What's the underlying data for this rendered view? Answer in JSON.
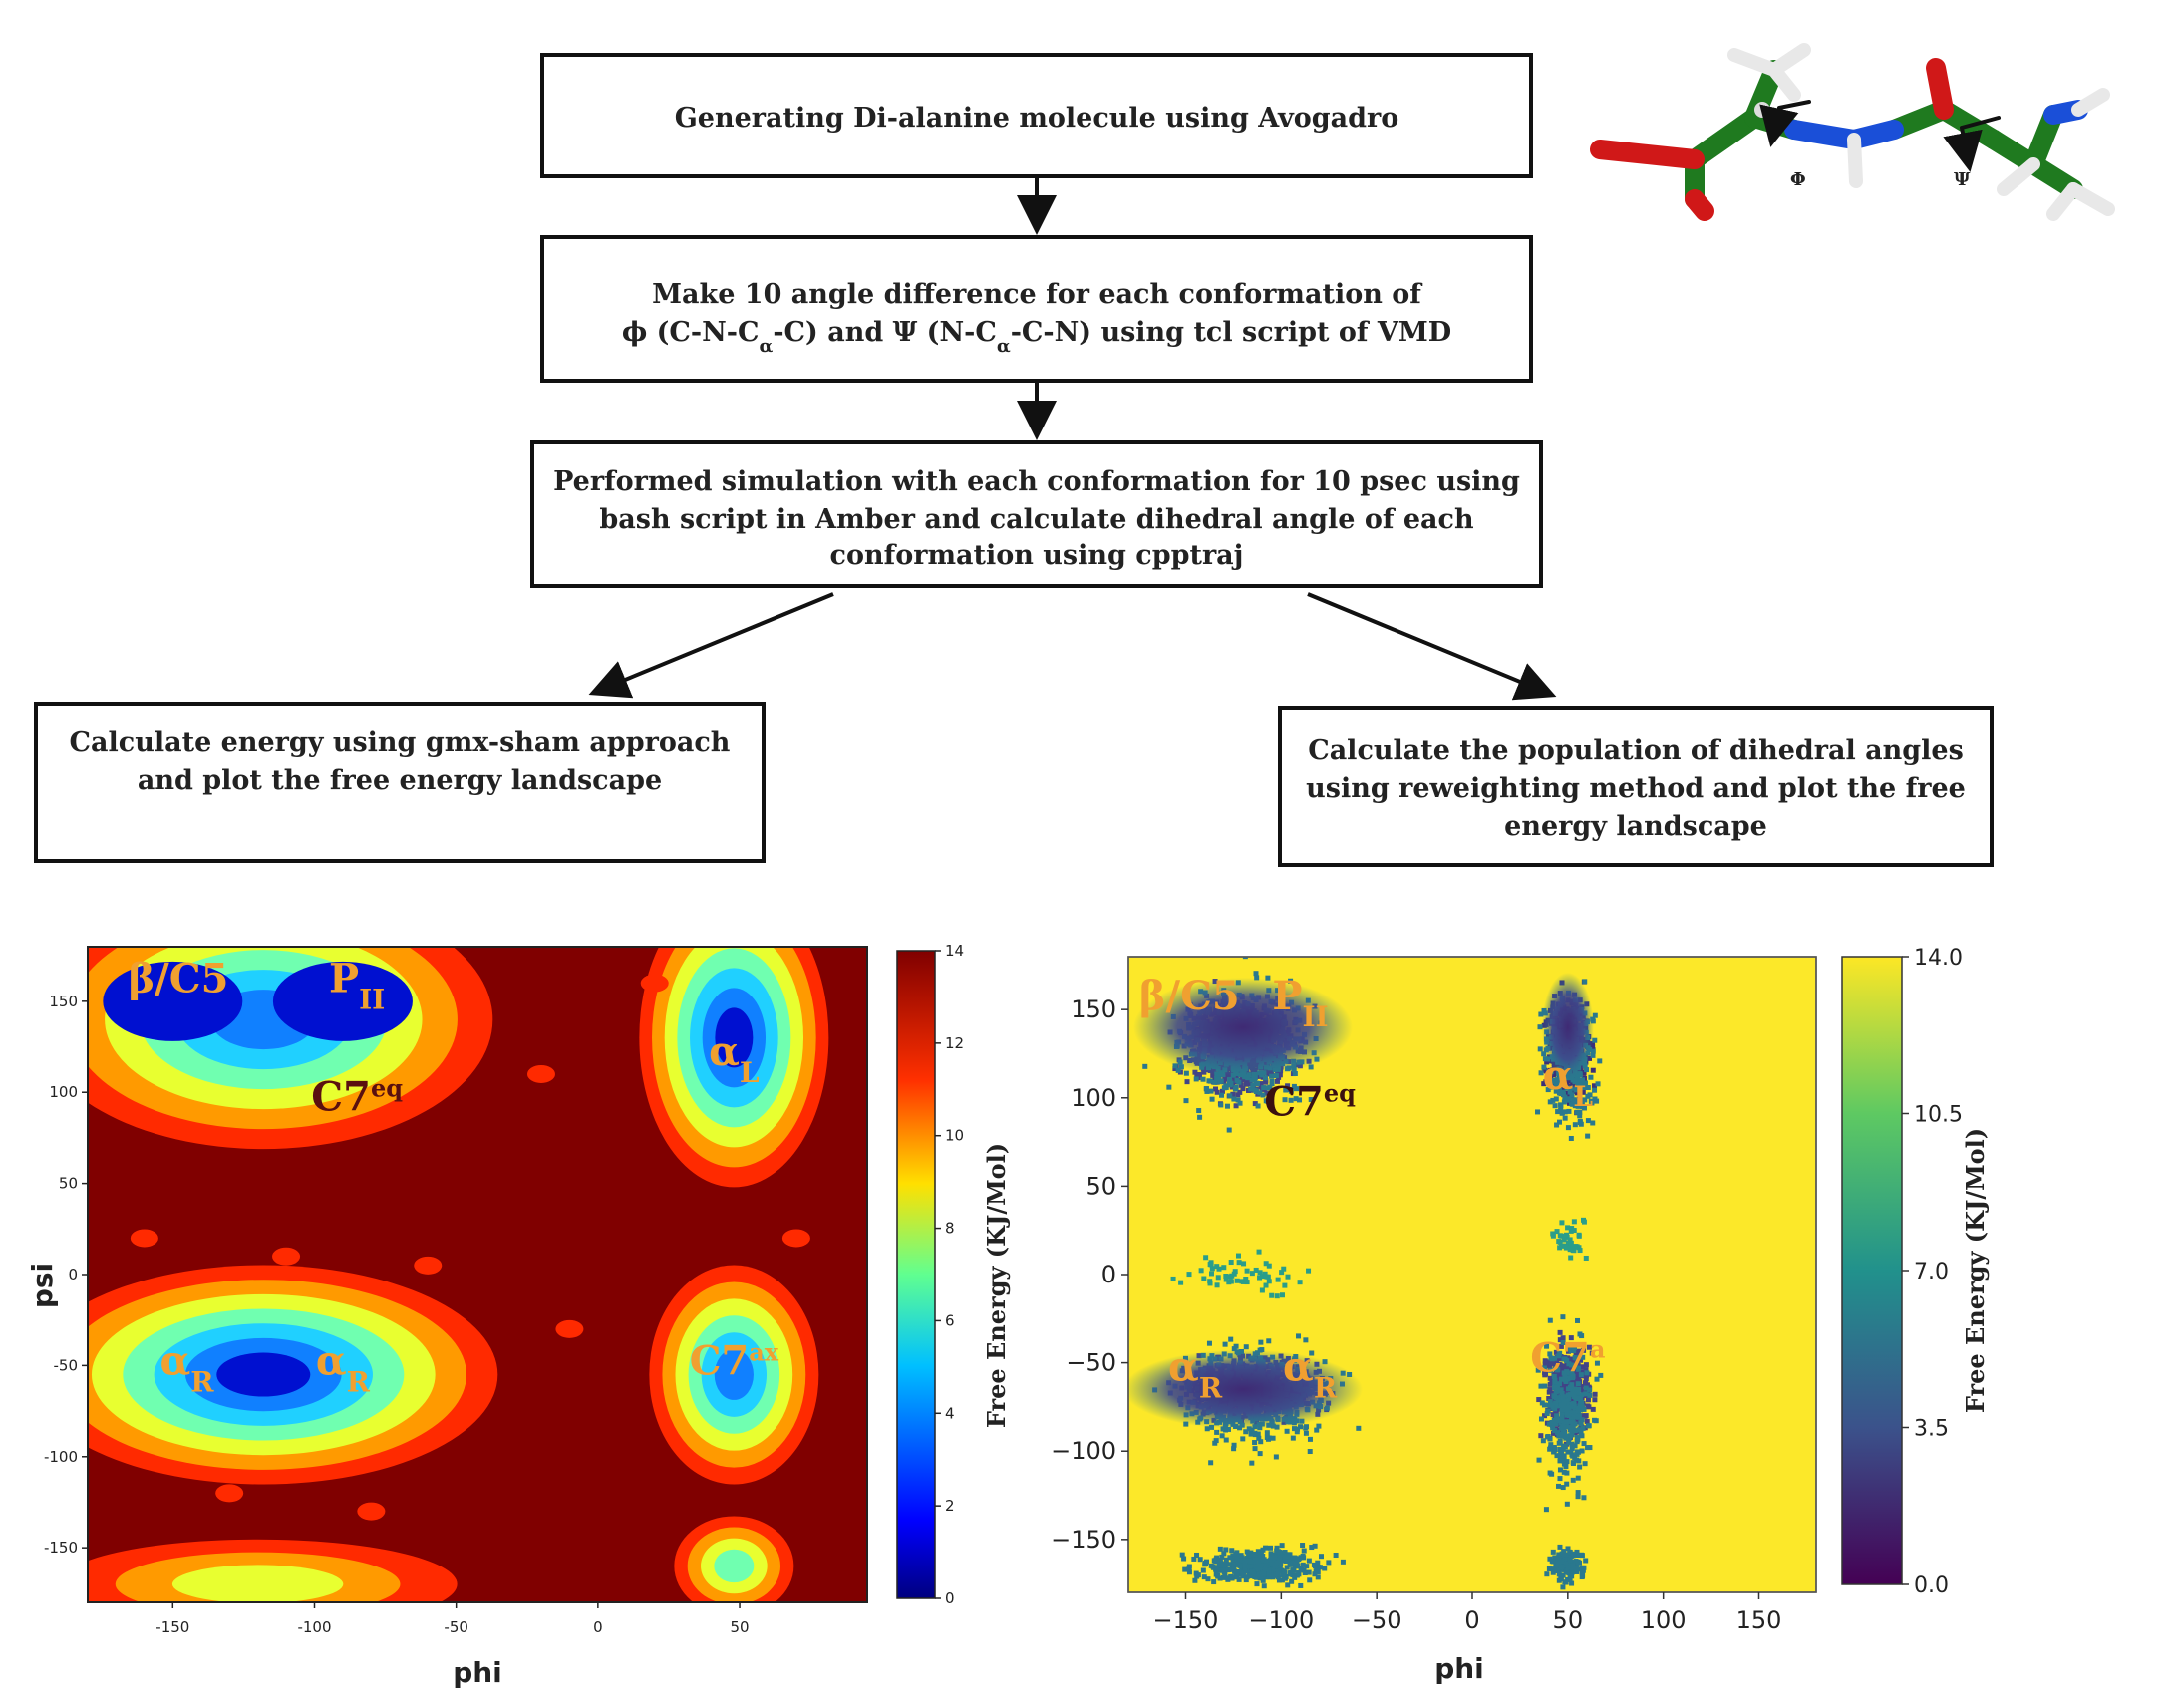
{
  "flowchart": {
    "step1": "Generating Di-alanine molecule using Avogadro",
    "step2_line1": "Make 10 angle difference for each conformation of",
    "step2_phi_sym": "ϕ",
    "step2_phi_def_a": " (C-N-C",
    "step2_sub_a": "α",
    "step2_phi_def_b": "-C) and ",
    "step2_psi_sym": "Ψ",
    "step2_psi_def_a": " (N-C",
    "step2_sub_b": "α",
    "step2_psi_def_b": "-C-N) using tcl script of VMD",
    "step3_line1": "Performed simulation with each conformation for 10 psec using",
    "step3_line2": "bash script in Amber and calculate dihedral angle of each",
    "step3_line3": "conformation using cpptraj",
    "left_line1": "Calculate energy using gmx-sham approach",
    "left_line2": "and plot the free energy landscape",
    "right_line1": "Calculate the population of dihedral angles",
    "right_line2": "using reweighting method and plot the free",
    "right_line3": "energy landscape"
  },
  "molecule": {
    "phi_label": "Φ",
    "psi_label": "Ψ"
  },
  "chart_data": [
    {
      "type": "heatmap",
      "xlabel": "phi",
      "ylabel": "psi",
      "xlim": [
        -180,
        95
      ],
      "ylim": [
        -180,
        180
      ],
      "x_ticks": [
        -150,
        -100,
        -50,
        0,
        50
      ],
      "y_ticks": [
        150,
        100,
        50,
        0,
        -50,
        -100,
        -150
      ],
      "colorbar": {
        "range": [
          0,
          14
        ],
        "ticks": [
          0,
          2,
          4,
          6,
          8,
          10,
          12,
          14
        ],
        "colormap": "jet"
      },
      "regions": [
        {
          "label": "β/C5",
          "phi": -148,
          "psi": 155
        },
        {
          "label": "P",
          "sub": "II",
          "phi": -85,
          "psi": 155
        },
        {
          "label": "C7",
          "sup": "eq",
          "phi": -85,
          "psi": 90
        },
        {
          "label": "α",
          "sub": "L",
          "phi": 48,
          "psi": 115
        },
        {
          "label": "α",
          "sub": "R",
          "phi": -145,
          "psi": -55
        },
        {
          "label": "α",
          "sub": "R",
          "phi": -90,
          "psi": -55
        },
        {
          "label": "C7",
          "sup": "ax",
          "phi": 48,
          "psi": -55
        }
      ]
    },
    {
      "type": "heatmap",
      "xlabel": "phi",
      "ylabel": "",
      "xlim": [
        -180,
        180
      ],
      "ylim": [
        -180,
        180
      ],
      "x_ticks": [
        -150,
        -100,
        -50,
        0,
        50,
        100,
        150
      ],
      "y_ticks": [
        150,
        100,
        50,
        0,
        -50,
        -100,
        -150
      ],
      "colorbar": {
        "label": "Free Energy (KJ/Mol)",
        "range": [
          0.0,
          14.0
        ],
        "ticks": [
          "0.0",
          "3.5",
          "7.0",
          "10.5",
          "14.0"
        ],
        "colormap": "viridis"
      },
      "regions": [
        {
          "label": "β/C5",
          "phi": -148,
          "psi": 150
        },
        {
          "label": "P",
          "sub": "II",
          "phi": -90,
          "psi": 150
        },
        {
          "label": "C7",
          "sup": "eq",
          "phi": -85,
          "psi": 90
        },
        {
          "label": "α",
          "sub": "L",
          "phi": 50,
          "psi": 105
        },
        {
          "label": "α",
          "sub": "R",
          "phi": -145,
          "psi": -60
        },
        {
          "label": "α",
          "sub": "R",
          "phi": -85,
          "psi": -60
        },
        {
          "label": "C7",
          "sup": "a",
          "phi": 50,
          "psi": -55
        }
      ],
      "side_label": "Free Energy (KJ/Mol)"
    }
  ]
}
